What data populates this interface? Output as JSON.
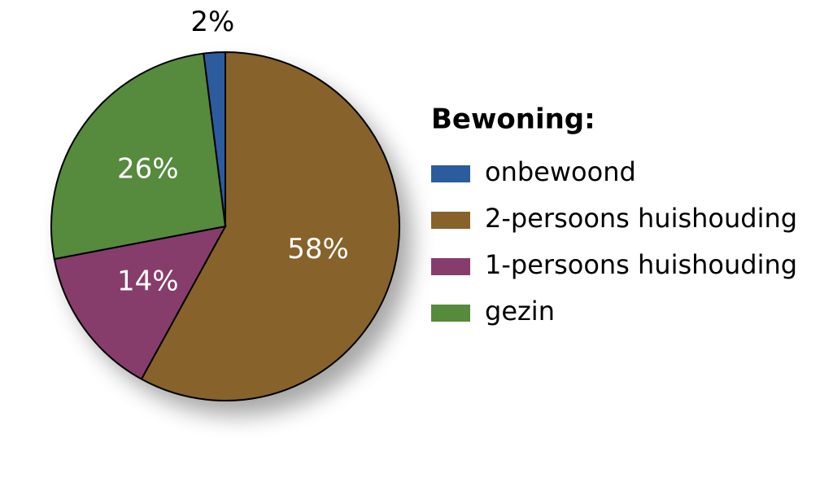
{
  "chart_data": {
    "type": "pie",
    "categories": [
      "onbewoond",
      "2-persoons huishouding",
      "1-persoons huishouding",
      "gezin"
    ],
    "values": [
      2,
      58,
      14,
      26
    ],
    "value_labels": [
      "2%",
      "58%",
      "14%",
      "26%"
    ],
    "colors": [
      "#2c5c9e",
      "#87622a",
      "#873d6b",
      "#568a3d"
    ],
    "legend_title": "Bewoning:",
    "legend": "right"
  }
}
